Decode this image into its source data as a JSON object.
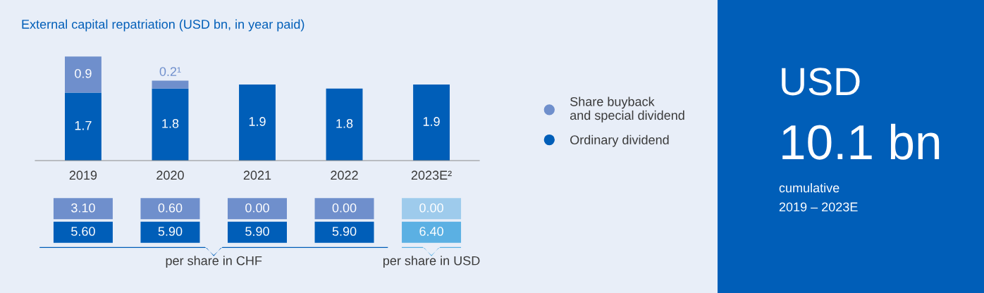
{
  "chart_data": [
    {
      "type": "bar",
      "title": "External capital repatriation (USD bn, in year paid)",
      "stacked": true,
      "legend": "right",
      "grid": false,
      "categories": [
        "2019",
        "2020",
        "2021",
        "2022",
        "2023E²"
      ],
      "series": [
        {
          "name": "Ordinary dividend",
          "color": "#005eb8",
          "values": [
            1.7,
            1.8,
            1.9,
            1.8,
            1.9
          ],
          "value_labels": [
            "1.7",
            "1.8",
            "1.9",
            "1.8",
            "1.9"
          ]
        },
        {
          "name": "Share buyback and special dividend",
          "color": "#6f8fcc",
          "values": [
            0.9,
            0.2,
            null,
            null,
            null
          ],
          "value_labels": [
            "0.9",
            "0.2¹",
            null,
            null,
            null
          ]
        }
      ]
    },
    {
      "type": "other",
      "annotations": [
        "3.10",
        "0.60",
        "0.00",
        "0.00",
        "0.00",
        "5.60",
        "5.90",
        "5.90",
        "5.90",
        "6.40",
        "per share in CHF",
        "per share in USD"
      ],
      "colors": [
        "#6f8fcc",
        "#6f8fcc",
        "#6f8fcc",
        "#6f8fcc",
        "#9ecbec",
        "#005eb8",
        "#005eb8",
        "#005eb8",
        "#005eb8",
        "#5bb0e3"
      ]
    },
    {
      "type": "other",
      "annotations": [
        "USD",
        "10.1 bn",
        "cumulative",
        "2019 – 2023E"
      ]
    }
  ]
}
